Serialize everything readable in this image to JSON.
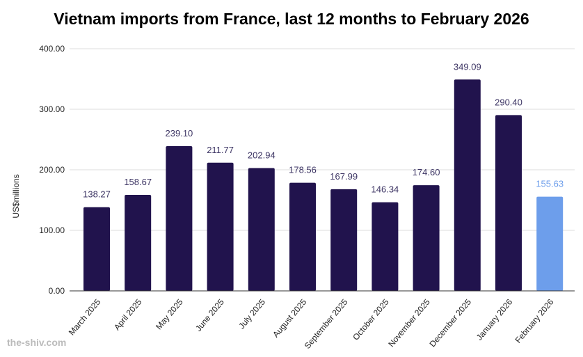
{
  "chart_data": {
    "type": "bar",
    "title": "Vietnam imports from France, last 12 months to February 2026",
    "xlabel": "",
    "ylabel": "US$millions",
    "ylim": [
      0,
      400
    ],
    "yticks": [
      "0.00",
      "100.00",
      "200.00",
      "300.00",
      "400.00"
    ],
    "categories": [
      "March 2025",
      "April 2025",
      "May 2025",
      "June 2025",
      "July 2025",
      "August 2025",
      "September 2025",
      "October 2025",
      "November 2025",
      "December 2025",
      "January 2026",
      "February 2026"
    ],
    "values": [
      138.27,
      158.67,
      239.1,
      211.77,
      202.94,
      178.56,
      167.99,
      146.34,
      174.6,
      349.09,
      290.4,
      155.63
    ],
    "labels": [
      "138.27",
      "158.67",
      "239.10",
      "211.77",
      "202.94",
      "178.56",
      "167.99",
      "146.34",
      "174.60",
      "349.09",
      "290.40",
      "155.63"
    ],
    "grid": true,
    "colors": {
      "bar": "#21134d",
      "highlight": "#6d9eeb",
      "label": "#3d3564",
      "highlight_label": "#6d9eeb"
    },
    "highlight_index": 11
  },
  "watermark": "the-shiv.com"
}
